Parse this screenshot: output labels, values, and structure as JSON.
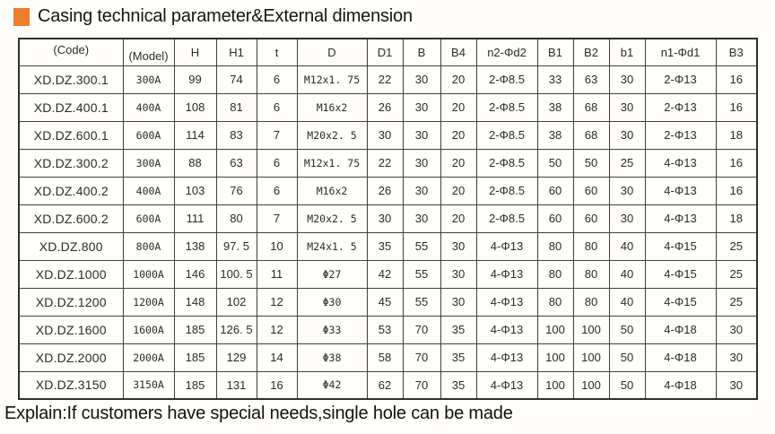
{
  "page": {
    "title": "Casing technical parameter&External dimension",
    "explain": "Explain:If customers have special needs,single hole can be made",
    "accent_color": "#ee7d2e"
  },
  "table": {
    "columns": [
      "(Code)",
      "(Model)",
      "H",
      "H1",
      "t",
      "D",
      "D1",
      "B",
      "B4",
      "n2-Φd2",
      "B1",
      "B2",
      "b1",
      "n1-Φd1",
      "B3"
    ],
    "rows": [
      [
        "XD.DZ.300.1",
        "300A",
        "99",
        "74",
        "6",
        "M12x1. 75",
        "22",
        "30",
        "20",
        "2-Φ8.5",
        "33",
        "63",
        "30",
        "2-Φ13",
        "16"
      ],
      [
        "XD.DZ.400.1",
        "400A",
        "108",
        "81",
        "6",
        "M16x2",
        "26",
        "30",
        "20",
        "2-Φ8.5",
        "38",
        "68",
        "30",
        "2-Φ13",
        "16"
      ],
      [
        "XD.DZ.600.1",
        "600A",
        "114",
        "83",
        "7",
        "M20x2. 5",
        "30",
        "30",
        "20",
        "2-Φ8.5",
        "38",
        "68",
        "30",
        "2-Φ13",
        "18"
      ],
      [
        "XD.DZ.300.2",
        "300A",
        "88",
        "63",
        "6",
        "M12x1. 75",
        "22",
        "30",
        "20",
        "2-Φ8.5",
        "50",
        "50",
        "25",
        "4-Φ13",
        "16"
      ],
      [
        "XD.DZ.400.2",
        "400A",
        "103",
        "76",
        "6",
        "M16x2",
        "26",
        "30",
        "20",
        "2-Φ8.5",
        "60",
        "60",
        "30",
        "4-Φ13",
        "16"
      ],
      [
        "XD.DZ.600.2",
        "600A",
        "111",
        "80",
        "7",
        "M20x2. 5",
        "30",
        "30",
        "20",
        "2-Φ8.5",
        "60",
        "60",
        "30",
        "4-Φ13",
        "18"
      ],
      [
        "XD.DZ.800",
        "800A",
        "138",
        "97. 5",
        "10",
        "M24x1. 5",
        "35",
        "55",
        "30",
        "4-Φ13",
        "80",
        "80",
        "40",
        "4-Φ15",
        "25"
      ],
      [
        "XD.DZ.1000",
        "1000A",
        "146",
        "100. 5",
        "11",
        "Φ27",
        "42",
        "55",
        "30",
        "4-Φ13",
        "80",
        "80",
        "40",
        "4-Φ15",
        "25"
      ],
      [
        "XD.DZ.1200",
        "1200A",
        "148",
        "102",
        "12",
        "Φ30",
        "45",
        "55",
        "30",
        "4-Φ13",
        "80",
        "80",
        "40",
        "4-Φ15",
        "25"
      ],
      [
        "XD.DZ.1600",
        "1600A",
        "185",
        "126. 5",
        "12",
        "Φ33",
        "53",
        "70",
        "35",
        "4-Φ13",
        "100",
        "100",
        "50",
        "4-Φ18",
        "30"
      ],
      [
        "XD.DZ.2000",
        "2000A",
        "185",
        "129",
        "14",
        "Φ38",
        "58",
        "70",
        "35",
        "4-Φ13",
        "100",
        "100",
        "50",
        "4-Φ18",
        "30"
      ],
      [
        "XD.DZ.3150",
        "3150A",
        "185",
        "131",
        "16",
        "Φ42",
        "62",
        "70",
        "35",
        "4-Φ13",
        "100",
        "100",
        "50",
        "4-Φ18",
        "30"
      ]
    ]
  }
}
